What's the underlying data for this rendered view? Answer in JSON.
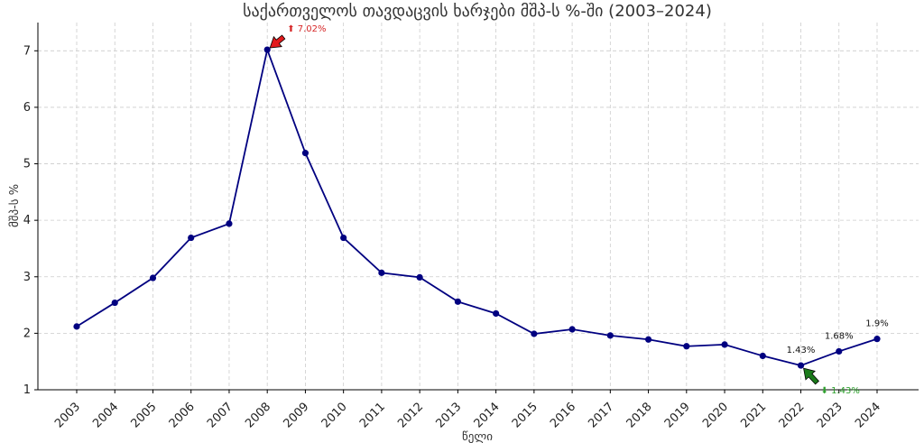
{
  "chart_data": {
    "type": "line",
    "title": "საქართველოს თავდაცვის ხარჯები მშპ-ს %-ში (2003–2024)",
    "xlabel": "წელი",
    "ylabel": "მშპ-ს %",
    "ylim": [
      1,
      7.5
    ],
    "yticks": [
      1,
      2,
      3,
      4,
      5,
      6,
      7
    ],
    "grid": true,
    "color": "#000080",
    "x": [
      "2003",
      "2004",
      "2005",
      "2006",
      "2007",
      "2008",
      "2009",
      "2010",
      "2011",
      "2012",
      "2013",
      "2014",
      "2015",
      "2016",
      "2017",
      "2018",
      "2019",
      "2020",
      "2021",
      "2022",
      "2023",
      "2024"
    ],
    "series": [
      {
        "values": [
          2.12,
          2.54,
          2.98,
          3.69,
          3.94,
          7.02,
          5.19,
          3.69,
          3.07,
          2.99,
          2.56,
          2.35,
          1.99,
          2.07,
          1.96,
          1.89,
          1.77,
          1.8,
          1.6,
          1.43,
          1.68,
          1.9
        ]
      }
    ],
    "data_labels": [
      {
        "year": "2022",
        "text": "1.43%"
      },
      {
        "year": "2023",
        "text": "1.68%"
      },
      {
        "year": "2024",
        "text": "1.9%"
      }
    ],
    "annotations": [
      {
        "kind": "max",
        "year": "2008",
        "value": 7.02,
        "text": "⬆ 7.02%",
        "color": "#d62728",
        "arrow_color": "#e31a1c"
      },
      {
        "kind": "min",
        "year": "2022",
        "value": 1.43,
        "text": "⬇ 1.43%",
        "color": "#2ca02c",
        "arrow_color": "#1a7a1a"
      }
    ]
  }
}
